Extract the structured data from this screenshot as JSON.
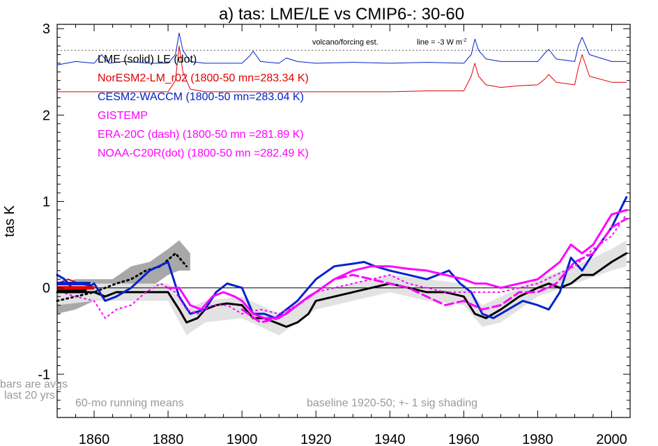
{
  "chart_data": {
    "type": "line",
    "title": "a) tas: LME/LE vs CMIP6-: 30-60",
    "xlabel": "",
    "ylabel": "tas K",
    "xlim": [
      1850,
      2005
    ],
    "ylim": [
      -1.5,
      3.05
    ],
    "x_ticks": [
      1860,
      1880,
      1900,
      1920,
      1940,
      1960,
      1980,
      2000
    ],
    "y_ticks": [
      -1,
      0,
      1,
      2,
      3
    ],
    "y_tick_labels": [
      "-1",
      "0",
      "1",
      "2",
      "3"
    ],
    "colors": {
      "lme": "#000000",
      "noresm": "#e00000",
      "cesm": "#0022cc",
      "obs": "#ff00ff",
      "shade_dark": "#a8a8a8",
      "shade_light": "#e2e2e2",
      "note": "#999999"
    },
    "legend": [
      {
        "label": "LME (solid)   LE (dot)",
        "color": "#000000"
      },
      {
        "label": "NorESM2-LM_r02 (1800-50 mn=283.34 K)",
        "color": "#e00000"
      },
      {
        "label": "CESM2-WACCM (1800-50 mn=283.04 K)",
        "color": "#0022cc"
      },
      {
        "label": "GISTEMP",
        "color": "#ff00ff"
      },
      {
        "label": "ERA-20C (dash) (1800-50 mn =281.89 K)",
        "color": "#ff00ff"
      },
      {
        "label": "NOAA-C20R(dot) (1800-50 mn =282.49 K)",
        "color": "#ff00ff"
      }
    ],
    "annotations": {
      "volcano_label": "volcano/forcing est.",
      "forcing_line_label": "line = -3 W m",
      "forcing_line_sup": "-2",
      "bars_note_1": "bars are avgs",
      "bars_note_2": "last 20 yrs",
      "running_means": "60-mo running means",
      "baseline": "baseline 1920-50; +- 1 sig shading"
    },
    "forcing_reference_y": 2.75,
    "series": [
      {
        "name": "LME (solid)",
        "color": "#000000",
        "style": "solid",
        "width": 3,
        "x": [
          1850,
          1855,
          1860,
          1863,
          1866,
          1870,
          1875,
          1880,
          1883,
          1885,
          1888,
          1890,
          1893,
          1896,
          1900,
          1903,
          1906,
          1909,
          1912,
          1915,
          1918,
          1920,
          1925,
          1930,
          1935,
          1940,
          1945,
          1950,
          1955,
          1960,
          1963,
          1966,
          1970,
          1975,
          1980,
          1983,
          1986,
          1989,
          1992,
          1995,
          2000,
          2004
        ],
        "y": [
          -0.05,
          -0.05,
          -0.05,
          -0.1,
          -0.05,
          -0.05,
          -0.05,
          -0.05,
          -0.25,
          -0.4,
          -0.35,
          -0.25,
          -0.2,
          -0.18,
          -0.2,
          -0.35,
          -0.35,
          -0.4,
          -0.45,
          -0.4,
          -0.3,
          -0.15,
          -0.1,
          -0.05,
          0.0,
          0.05,
          0.0,
          -0.05,
          -0.05,
          -0.1,
          -0.3,
          -0.35,
          -0.25,
          -0.1,
          0.0,
          0.05,
          0.0,
          0.05,
          0.15,
          0.15,
          0.3,
          0.4
        ]
      },
      {
        "name": "LE (dot)",
        "color": "#000000",
        "style": "dot",
        "width": 3,
        "x": [
          1850,
          1855,
          1860,
          1863,
          1866,
          1870,
          1874,
          1878,
          1882,
          1885
        ],
        "y": [
          -0.15,
          -0.1,
          -0.05,
          0.0,
          0.05,
          0.1,
          0.2,
          0.25,
          0.4,
          0.25
        ]
      },
      {
        "name": "NorESM2-LM_r02",
        "color": "#e00000",
        "style": "solid",
        "width": 2,
        "x": [
          1850,
          1853,
          1856,
          1859
        ],
        "y": [
          0.05,
          0.1,
          0.05,
          0.02
        ]
      },
      {
        "name": "CESM2-WACCM",
        "color": "#0022cc",
        "style": "solid",
        "width": 3,
        "x": [
          1850,
          1852,
          1854,
          1856,
          1858,
          1860,
          1863,
          1866,
          1870,
          1875,
          1880,
          1883,
          1886,
          1890,
          1893,
          1896,
          1900,
          1903,
          1906,
          1909,
          1912,
          1915,
          1920,
          1925,
          1930,
          1933,
          1936,
          1940,
          1945,
          1950,
          1953,
          1956,
          1959,
          1962,
          1965,
          1968,
          1972,
          1976,
          1980,
          1983,
          1986,
          1989,
          1992,
          1995,
          2000,
          2004
        ],
        "y": [
          0.15,
          0.1,
          0.0,
          -0.05,
          0.0,
          0.05,
          -0.15,
          -0.1,
          0.0,
          0.2,
          0.3,
          -0.1,
          -0.3,
          -0.25,
          -0.05,
          0.05,
          0.0,
          -0.3,
          -0.3,
          -0.35,
          -0.25,
          -0.15,
          0.1,
          0.25,
          0.28,
          0.3,
          0.25,
          0.2,
          0.15,
          0.1,
          0.15,
          0.2,
          0.05,
          -0.05,
          -0.3,
          -0.35,
          -0.25,
          -0.15,
          -0.2,
          -0.25,
          -0.05,
          0.35,
          0.2,
          0.4,
          0.7,
          1.05
        ]
      },
      {
        "name": "GISTEMP",
        "color": "#ff00ff",
        "style": "solid",
        "width": 3,
        "x": [
          1880,
          1883,
          1886,
          1889,
          1892,
          1895,
          1898,
          1900,
          1903,
          1906,
          1909,
          1912,
          1915,
          1918,
          1920,
          1925,
          1930,
          1935,
          1940,
          1945,
          1950,
          1955,
          1960,
          1963,
          1966,
          1970,
          1975,
          1980,
          1983,
          1986,
          1989,
          1992,
          1995,
          2000,
          2004
        ],
        "y": [
          0.0,
          0.0,
          -0.2,
          -0.25,
          -0.1,
          -0.05,
          -0.1,
          -0.15,
          -0.3,
          -0.35,
          -0.35,
          -0.3,
          -0.2,
          -0.1,
          -0.05,
          0.1,
          0.2,
          0.25,
          0.25,
          0.22,
          0.2,
          0.15,
          0.1,
          0.05,
          0.05,
          0.0,
          0.05,
          0.1,
          0.2,
          0.3,
          0.5,
          0.4,
          0.5,
          0.85,
          0.9
        ]
      },
      {
        "name": "ERA-20C (dash)",
        "color": "#ff00ff",
        "style": "dash",
        "width": 3,
        "x": [
          1900,
          1905,
          1910,
          1915,
          1920,
          1925,
          1930,
          1935,
          1940,
          1945,
          1950,
          1955,
          1960,
          1965,
          1970,
          1975,
          1980,
          1985,
          1990,
          1995,
          2000,
          2004
        ],
        "y": [
          -0.25,
          -0.4,
          -0.35,
          -0.2,
          -0.05,
          0.1,
          0.15,
          0.1,
          0.05,
          0.0,
          -0.1,
          -0.2,
          -0.15,
          -0.25,
          -0.2,
          -0.05,
          -0.05,
          0.05,
          0.3,
          0.4,
          0.7,
          0.8
        ]
      },
      {
        "name": "NOAA-C20R(dot)",
        "color": "#ff00ff",
        "style": "dot",
        "width": 2,
        "x": [
          1851,
          1855,
          1860,
          1863,
          1866,
          1870,
          1874,
          1878,
          1882,
          1885,
          1888,
          1892,
          1896,
          1900,
          1905,
          1910,
          1915,
          1920,
          1925,
          1930,
          1935,
          1940,
          1945,
          1950,
          1955,
          1960,
          1965,
          1970,
          1975,
          1980,
          1985,
          1990,
          1995,
          2000,
          2004
        ],
        "y": [
          -0.05,
          -0.1,
          -0.15,
          -0.35,
          -0.25,
          -0.2,
          -0.05,
          0.05,
          -0.05,
          -0.25,
          -0.3,
          -0.2,
          -0.2,
          -0.3,
          -0.25,
          -0.3,
          -0.2,
          -0.05,
          0.0,
          0.05,
          0.1,
          0.15,
          0.05,
          0.0,
          -0.05,
          -0.05,
          -0.05,
          -0.05,
          0.0,
          0.05,
          0.15,
          0.25,
          0.45,
          0.6,
          0.85
        ]
      },
      {
        "name": "CESM2 forcing (blue)",
        "color": "#0022cc",
        "style": "solid",
        "width": 1,
        "x": [
          1850,
          1855,
          1860,
          1862,
          1864,
          1868,
          1875,
          1880,
          1882,
          1883,
          1884,
          1886,
          1890,
          1895,
          1900,
          1902,
          1903,
          1905,
          1910,
          1912,
          1915,
          1920,
          1930,
          1940,
          1950,
          1960,
          1962,
          1963,
          1964,
          1966,
          1970,
          1975,
          1980,
          1982,
          1983,
          1985,
          1990,
          1991,
          1992,
          1994,
          2000,
          2004
        ],
        "y": [
          2.58,
          2.62,
          2.6,
          2.7,
          2.6,
          2.62,
          2.6,
          2.6,
          2.7,
          2.95,
          2.75,
          2.62,
          2.6,
          2.6,
          2.6,
          2.68,
          2.74,
          2.62,
          2.6,
          2.66,
          2.62,
          2.6,
          2.61,
          2.6,
          2.61,
          2.6,
          2.7,
          2.88,
          2.75,
          2.65,
          2.62,
          2.62,
          2.62,
          2.72,
          2.76,
          2.65,
          2.62,
          2.8,
          2.9,
          2.7,
          2.62,
          2.62
        ]
      },
      {
        "name": "NorESM2 forcing (red)",
        "color": "#e00000",
        "style": "solid",
        "width": 1,
        "x": [
          1850,
          1860,
          1870,
          1880,
          1882,
          1883,
          1884,
          1886,
          1890,
          1900,
          1910,
          1920,
          1930,
          1940,
          1950,
          1960,
          1962,
          1963,
          1964,
          1966,
          1970,
          1975,
          1980,
          1982,
          1983,
          1985,
          1990,
          1991,
          1992,
          1994,
          2000,
          2004
        ],
        "y": [
          2.27,
          2.27,
          2.27,
          2.27,
          2.4,
          2.8,
          2.5,
          2.3,
          2.27,
          2.27,
          2.27,
          2.27,
          2.27,
          2.27,
          2.28,
          2.28,
          2.45,
          2.6,
          2.45,
          2.35,
          2.32,
          2.34,
          2.35,
          2.42,
          2.47,
          2.38,
          2.35,
          2.55,
          2.7,
          2.45,
          2.38,
          2.38
        ]
      }
    ],
    "bands": [
      {
        "name": "LE +-1 sig",
        "color": "#a8a8a8",
        "x": [
          1850,
          1855,
          1860,
          1865,
          1870,
          1875,
          1880,
          1883,
          1886
        ],
        "upper": [
          0.05,
          0.1,
          0.1,
          0.1,
          0.25,
          0.3,
          0.45,
          0.55,
          0.4
        ],
        "lower": [
          -0.3,
          -0.25,
          -0.15,
          -0.1,
          -0.05,
          0.0,
          0.15,
          0.2,
          0.2
        ]
      },
      {
        "name": "LME +-1 sig",
        "color": "#e2e2e2",
        "x": [
          1850,
          1860,
          1870,
          1880,
          1885,
          1890,
          1900,
          1910,
          1920,
          1930,
          1940,
          1950,
          1960,
          1965,
          1970,
          1980,
          1990,
          2000,
          2004
        ],
        "upper": [
          0.1,
          0.05,
          0.05,
          0.05,
          -0.25,
          -0.15,
          -0.1,
          -0.3,
          -0.05,
          0.05,
          0.15,
          0.1,
          0.05,
          -0.2,
          -0.1,
          0.1,
          0.25,
          0.45,
          0.55
        ],
        "lower": [
          -0.2,
          -0.15,
          -0.15,
          -0.15,
          -0.55,
          -0.4,
          -0.35,
          -0.55,
          -0.25,
          -0.15,
          -0.05,
          -0.15,
          -0.2,
          -0.45,
          -0.4,
          -0.1,
          0.05,
          0.2,
          0.25
        ]
      }
    ],
    "bars": [
      {
        "name": "CESM2 avg bar",
        "color": "#0022cc",
        "x0": 1850,
        "x1": 1859,
        "y": 0.05
      },
      {
        "name": "NorESM2 avg bar",
        "color": "#e00000",
        "x0": 1850,
        "x1": 1860,
        "y": 0.0
      },
      {
        "name": "LME avg bar",
        "color": "#000000",
        "x0": 1850,
        "x1": 1858,
        "y": -0.04
      }
    ]
  }
}
